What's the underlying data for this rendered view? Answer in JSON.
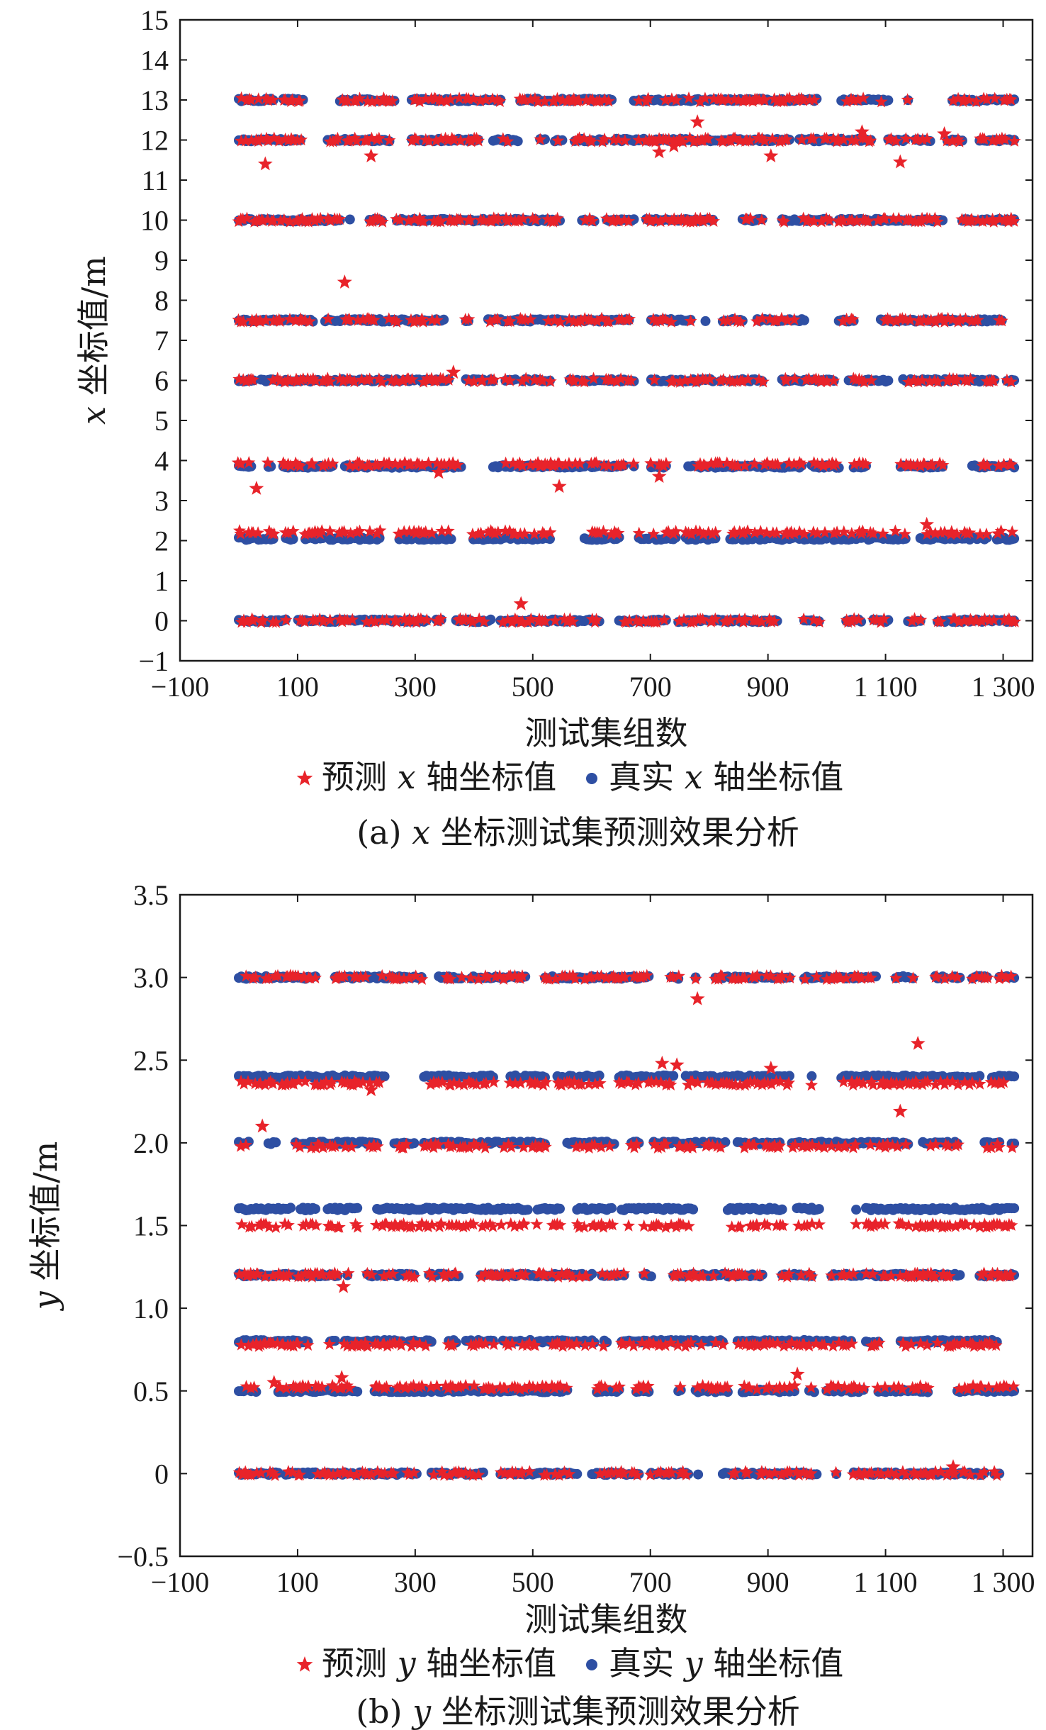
{
  "charts": [
    {
      "id": "a",
      "caption_prefix": "(a)",
      "caption_var": "x",
      "caption_rest": "坐标测试集预测效果分析",
      "xlabel": "测试集组数",
      "ylabel_var": "x",
      "ylabel_rest": "坐标值/m",
      "legend": [
        {
          "marker": "star",
          "pre": "预测",
          "var": "x",
          "post": "轴坐标值",
          "color": "#e8232a"
        },
        {
          "marker": "dot",
          "pre": "真实",
          "var": "x",
          "post": "轴坐标值",
          "color": "#2e4fa3"
        }
      ],
      "xticks": [
        {
          "value": -100,
          "label": "−100"
        },
        {
          "value": 100,
          "label": "100"
        },
        {
          "value": 300,
          "label": "300"
        },
        {
          "value": 500,
          "label": "500"
        },
        {
          "value": 700,
          "label": "700"
        },
        {
          "value": 900,
          "label": "900"
        },
        {
          "value": 1100,
          "label": "1 100"
        },
        {
          "value": 1300,
          "label": "1 300"
        }
      ],
      "yticks": [
        {
          "value": -1,
          "label": "−1"
        },
        {
          "value": 0,
          "label": "0"
        },
        {
          "value": 1,
          "label": "1"
        },
        {
          "value": 2,
          "label": "2"
        },
        {
          "value": 3,
          "label": "3"
        },
        {
          "value": 4,
          "label": "4"
        },
        {
          "value": 5,
          "label": "5"
        },
        {
          "value": 6,
          "label": "6"
        },
        {
          "value": 7,
          "label": "7"
        },
        {
          "value": 8,
          "label": "8"
        },
        {
          "value": 9,
          "label": "9"
        },
        {
          "value": 10,
          "label": "10"
        },
        {
          "value": 11,
          "label": "11"
        },
        {
          "value": 12,
          "label": "12"
        },
        {
          "value": 13,
          "label": "13"
        },
        {
          "value": 14,
          "label": "14"
        },
        {
          "value": 15,
          "label": "15"
        }
      ]
    },
    {
      "id": "b",
      "caption_prefix": "(b)",
      "caption_var": "y",
      "caption_rest": "坐标测试集预测效果分析",
      "xlabel": "测试集组数",
      "ylabel_var": "y",
      "ylabel_rest": "坐标值/m",
      "legend": [
        {
          "marker": "star",
          "pre": "预测",
          "var": "y",
          "post": "轴坐标值",
          "color": "#e8232a"
        },
        {
          "marker": "dot",
          "pre": "真实",
          "var": "y",
          "post": "轴坐标值",
          "color": "#2e4fa3"
        }
      ],
      "xticks": [
        {
          "value": -100,
          "label": "−100"
        },
        {
          "value": 100,
          "label": "100"
        },
        {
          "value": 300,
          "label": "300"
        },
        {
          "value": 500,
          "label": "500"
        },
        {
          "value": 700,
          "label": "700"
        },
        {
          "value": 900,
          "label": "900"
        },
        {
          "value": 1100,
          "label": "1 100"
        },
        {
          "value": 1300,
          "label": "1 300"
        }
      ],
      "yticks": [
        {
          "value": -0.5,
          "label": "−0.5"
        },
        {
          "value": 0,
          "label": "0"
        },
        {
          "value": 0.5,
          "label": "0.5"
        },
        {
          "value": 1.0,
          "label": "1.0"
        },
        {
          "value": 1.5,
          "label": "1.5"
        },
        {
          "value": 2.0,
          "label": "2.0"
        },
        {
          "value": 2.5,
          "label": "2.5"
        },
        {
          "value": 3.0,
          "label": "3.0"
        },
        {
          "value": 3.5,
          "label": "3.5"
        }
      ]
    }
  ],
  "chart_data": [
    {
      "type": "scatter",
      "title": "(a) x 坐标测试集预测效果分析",
      "xlabel": "测试集组数",
      "ylabel": "x 坐标值/m",
      "xlim": [
        -100,
        1350
      ],
      "ylim": [
        -1,
        15
      ],
      "x_range": [
        0,
        1320
      ],
      "grid": false,
      "legend_position": "bottom",
      "series": [
        {
          "name": "真实 x 轴坐标值",
          "marker": "dot",
          "color": "#2e4fa3",
          "levels": [
            0,
            2.05,
            3.85,
            6.0,
            7.5,
            10.0,
            12.0,
            13.0
          ]
        },
        {
          "name": "预测 x 轴坐标值",
          "marker": "star",
          "color": "#e8232a",
          "levels": [
            0,
            2.2,
            3.9,
            6.0,
            7.5,
            10.0,
            12.0,
            13.0
          ],
          "outliers": [
            {
              "x": 30,
              "y": 3.3
            },
            {
              "x": 45,
              "y": 11.4
            },
            {
              "x": 180,
              "y": 8.45
            },
            {
              "x": 225,
              "y": 11.6
            },
            {
              "x": 340,
              "y": 3.7
            },
            {
              "x": 365,
              "y": 6.2
            },
            {
              "x": 480,
              "y": 0.42
            },
            {
              "x": 545,
              "y": 3.35
            },
            {
              "x": 715,
              "y": 3.6
            },
            {
              "x": 715,
              "y": 11.7
            },
            {
              "x": 740,
              "y": 11.85
            },
            {
              "x": 780,
              "y": 12.45
            },
            {
              "x": 905,
              "y": 11.6
            },
            {
              "x": 1060,
              "y": 12.2
            },
            {
              "x": 1125,
              "y": 11.45
            },
            {
              "x": 1170,
              "y": 2.4
            },
            {
              "x": 1200,
              "y": 12.15
            }
          ]
        }
      ]
    },
    {
      "type": "scatter",
      "title": "(b) y 坐标测试集预测效果分析",
      "xlabel": "测试集组数",
      "ylabel": "y 坐标值/m",
      "xlim": [
        -100,
        1350
      ],
      "ylim": [
        -0.5,
        3.5
      ],
      "x_range": [
        0,
        1320
      ],
      "grid": false,
      "legend_position": "bottom",
      "series": [
        {
          "name": "真实 y 轴坐标值",
          "marker": "dot",
          "color": "#2e4fa3",
          "levels": [
            0,
            0.5,
            0.8,
            1.2,
            1.6,
            2.0,
            2.4,
            3.0
          ]
        },
        {
          "name": "预测 y 轴坐标值",
          "marker": "star",
          "color": "#e8232a",
          "levels": [
            0,
            0.52,
            0.78,
            1.2,
            1.5,
            1.98,
            2.36,
            3.0
          ],
          "outliers": [
            {
              "x": 40,
              "y": 2.1
            },
            {
              "x": 60,
              "y": 0.55
            },
            {
              "x": 175,
              "y": 0.58
            },
            {
              "x": 178,
              "y": 1.13
            },
            {
              "x": 225,
              "y": 2.32
            },
            {
              "x": 720,
              "y": 2.48
            },
            {
              "x": 745,
              "y": 2.47
            },
            {
              "x": 780,
              "y": 2.87
            },
            {
              "x": 905,
              "y": 2.45
            },
            {
              "x": 950,
              "y": 0.6
            },
            {
              "x": 1125,
              "y": 2.19
            },
            {
              "x": 1155,
              "y": 2.6
            },
            {
              "x": 1215,
              "y": 0.04
            }
          ]
        }
      ]
    }
  ]
}
